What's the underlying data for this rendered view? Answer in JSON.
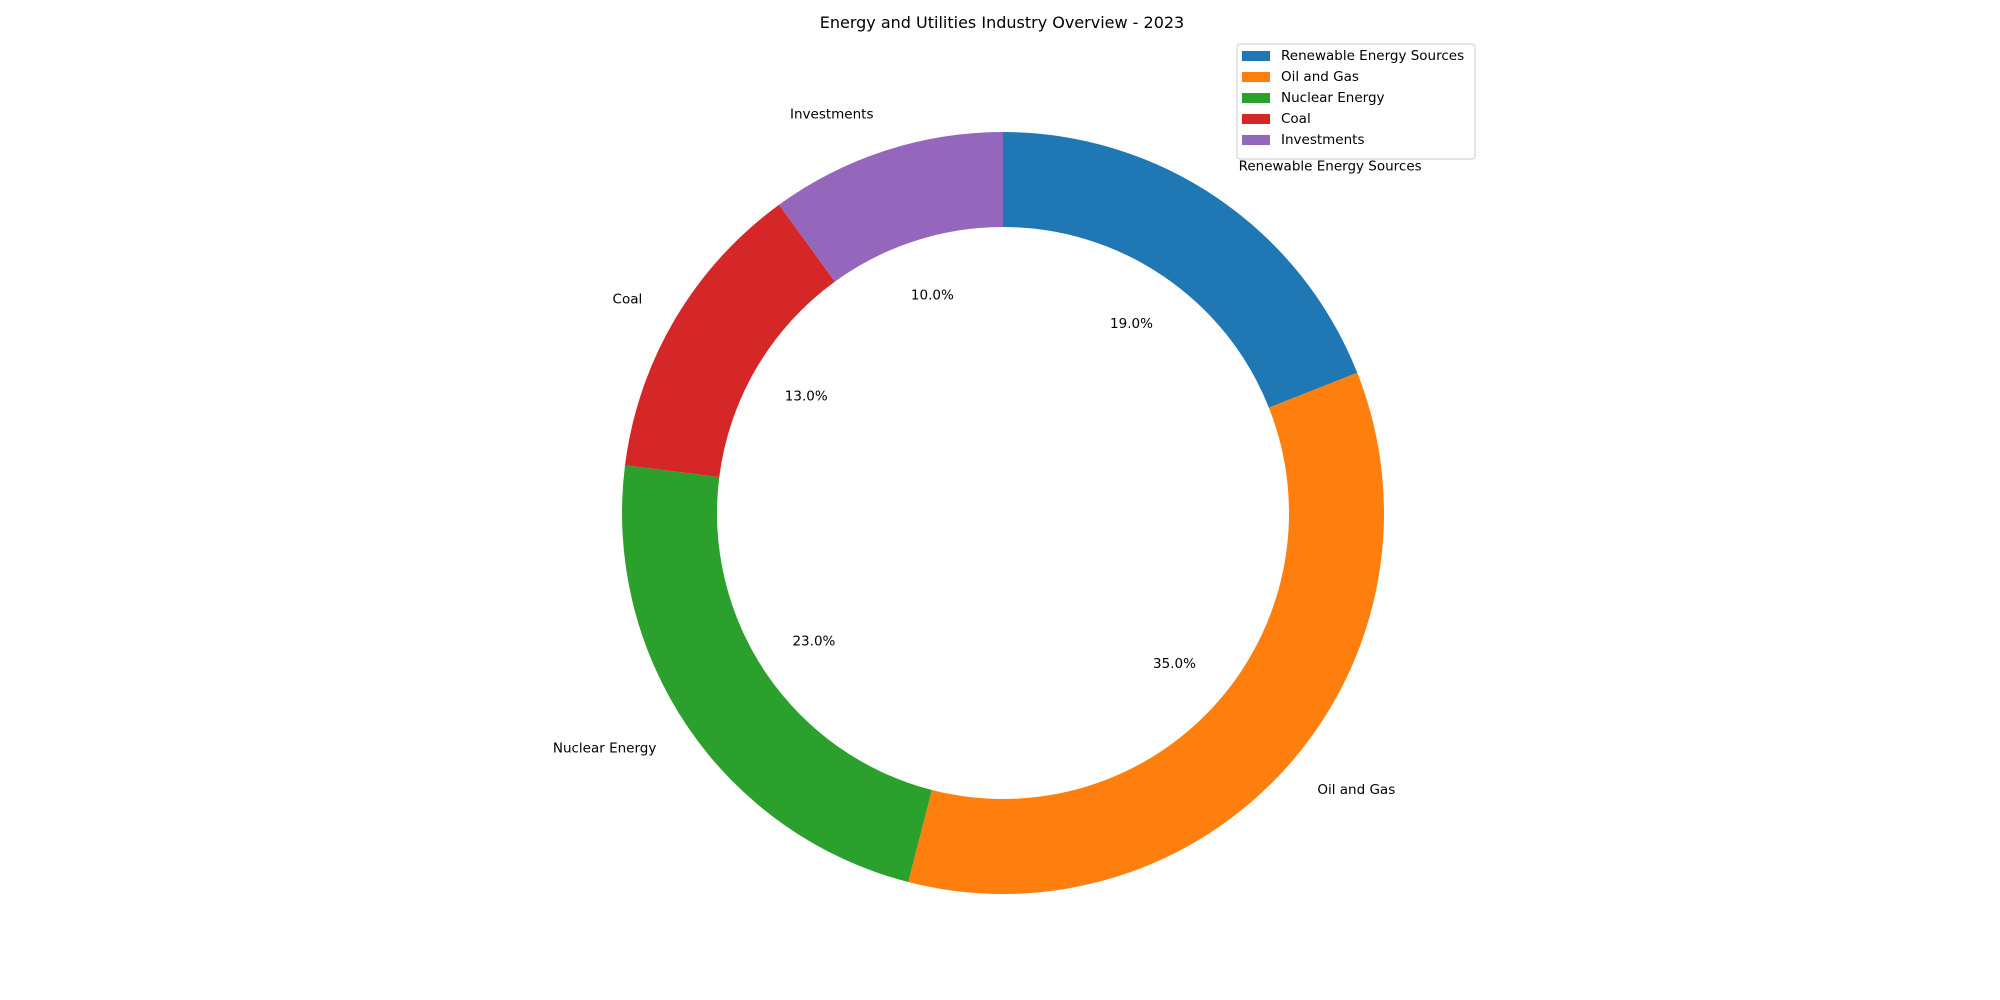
{
  "chart_data": {
    "type": "pie",
    "donut": true,
    "title": "Energy and Utilities Industry Overview - 2023",
    "categories": [
      "Renewable Energy Sources",
      "Oil and Gas",
      "Nuclear Energy",
      "Coal",
      "Investments"
    ],
    "values": [
      19.0,
      35.0,
      23.0,
      13.0,
      10.0
    ],
    "percent_labels": [
      "19.0%",
      "35.0%",
      "23.0%",
      "13.0%",
      "10.0%"
    ],
    "colors": [
      "#1f77b4",
      "#ff7f0e",
      "#2ca02c",
      "#d62728",
      "#9467bd"
    ],
    "start_angle_deg": 90,
    "direction": "clockwise",
    "legend": {
      "position": "top-right"
    }
  }
}
